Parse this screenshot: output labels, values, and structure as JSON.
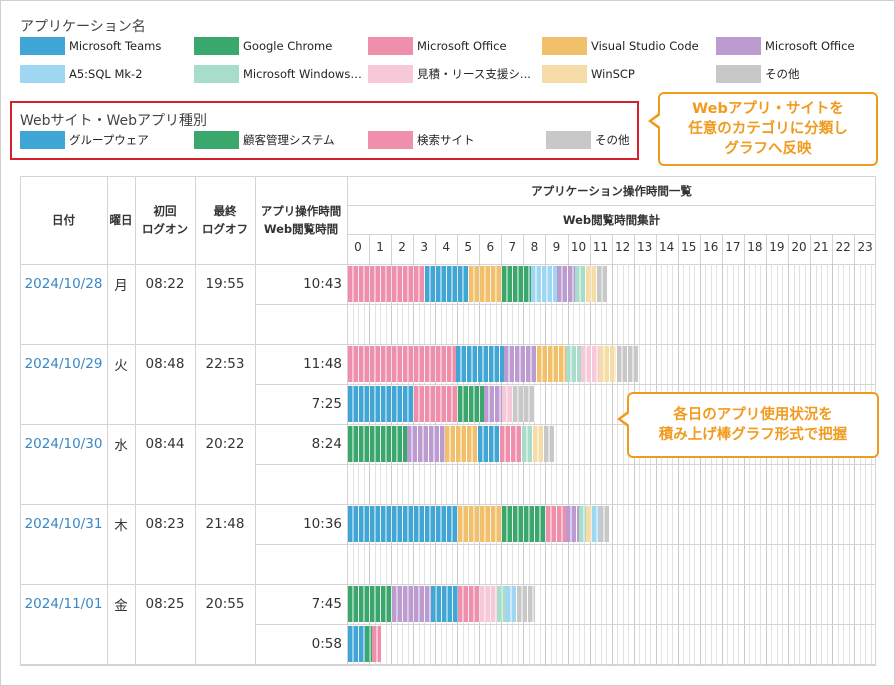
{
  "app_section": {
    "title": "アプリケーション名",
    "legend": [
      {
        "label": "Microsoft Teams",
        "color": "#3fa6d6"
      },
      {
        "label": "Google Chrome",
        "color": "#3aa86d"
      },
      {
        "label": "Microsoft Office",
        "color": "#ef8fab"
      },
      {
        "label": "Visual Studio Code",
        "color": "#f2c06b"
      },
      {
        "label": "Microsoft Office",
        "color": "#bc9bd0"
      },
      {
        "label": "A5:SQL Mk-2",
        "color": "#9fd7f3"
      },
      {
        "label": "Microsoft Windows ...",
        "color": "#a8ddcb"
      },
      {
        "label": "見積・リース支援シ...",
        "color": "#f7c8d8"
      },
      {
        "label": "WinSCP",
        "color": "#f6dca6"
      },
      {
        "label": "その他",
        "color": "#c8c8c8"
      }
    ]
  },
  "web_section": {
    "title": "Webサイト・Webアプリ種別",
    "legend": [
      {
        "label": "グループウェア",
        "color": "#3fa6d6"
      },
      {
        "label": "顧客管理システム",
        "color": "#3aa86d"
      },
      {
        "label": "検索サイト",
        "color": "#ef8fab"
      },
      {
        "label": "その他",
        "color": "#c8c8c8"
      }
    ]
  },
  "callouts": {
    "categorize": [
      "Webアプリ・サイトを",
      "任意のカテゴリに分類し",
      "グラフへ反映"
    ],
    "stacked": [
      "各日のアプリ使用状況を",
      "積み上げ棒グラフ形式で把握"
    ]
  },
  "table": {
    "headers": {
      "date": "日付",
      "weekday": "曜日",
      "first_logon": [
        "初回",
        "ログオン"
      ],
      "last_logoff": [
        "最終",
        "ログオフ"
      ],
      "time": [
        "アプリ操作時間",
        "Web閲覧時間"
      ],
      "app_time_list": "アプリケーション操作時間一覧",
      "web_summary": "Web閲覧時間集計"
    },
    "hours": [
      "0",
      "1",
      "2",
      "3",
      "4",
      "5",
      "6",
      "7",
      "8",
      "9",
      "10",
      "11",
      "12",
      "13",
      "14",
      "15",
      "16",
      "17",
      "18",
      "19",
      "20",
      "21",
      "22",
      "23"
    ],
    "rows": [
      {
        "date": "2024/10/28",
        "weekday": "月",
        "logon": "08:22",
        "logoff": "19:55",
        "app_time": "10:43",
        "web_time": "",
        "app_bar": [
          [
            3.5,
            "#ef8fab"
          ],
          [
            2.0,
            "#3fa6d6"
          ],
          [
            1.5,
            "#f2c06b"
          ],
          [
            1.3,
            "#3aa86d"
          ],
          [
            1.2,
            "#9fd7f3"
          ],
          [
            0.8,
            "#bc9bd0"
          ],
          [
            0.5,
            "#a8ddcb"
          ],
          [
            0.5,
            "#f6dca6"
          ],
          [
            0.45,
            "#c8c8c8"
          ]
        ],
        "web_bar": []
      },
      {
        "date": "2024/10/29",
        "weekday": "火",
        "logon": "08:48",
        "logoff": "22:53",
        "app_time": "11:48",
        "web_time": "7:25",
        "app_bar": [
          [
            4.9,
            "#ef8fab"
          ],
          [
            2.2,
            "#3fa6d6"
          ],
          [
            1.5,
            "#bc9bd0"
          ],
          [
            1.3,
            "#f2c06b"
          ],
          [
            0.7,
            "#a8ddcb"
          ],
          [
            0.8,
            "#f7c8d8"
          ],
          [
            0.8,
            "#f6dca6"
          ],
          [
            1.0,
            "#c8c8c8"
          ]
        ],
        "web_bar": [
          [
            3.0,
            "#3fa6d6"
          ],
          [
            2.0,
            "#ef8fab"
          ],
          [
            1.2,
            "#3aa86d"
          ],
          [
            0.8,
            "#bc9bd0"
          ],
          [
            0.5,
            "#f7c8d8"
          ],
          [
            1.0,
            "#c8c8c8"
          ]
        ]
      },
      {
        "date": "2024/10/30",
        "weekday": "水",
        "logon": "08:44",
        "logoff": "20:22",
        "app_time": "8:24",
        "web_time": "",
        "app_bar": [
          [
            2.7,
            "#3aa86d"
          ],
          [
            1.7,
            "#bc9bd0"
          ],
          [
            1.5,
            "#f2c06b"
          ],
          [
            1.0,
            "#3fa6d6"
          ],
          [
            1.0,
            "#ef8fab"
          ],
          [
            0.5,
            "#a8ddcb"
          ],
          [
            0.5,
            "#f6dca6"
          ],
          [
            0.5,
            "#c8c8c8"
          ]
        ],
        "web_bar": []
      },
      {
        "date": "2024/10/31",
        "weekday": "木",
        "logon": "08:23",
        "logoff": "21:48",
        "app_time": "10:36",
        "web_time": "",
        "app_bar": [
          [
            5.0,
            "#3fa6d6"
          ],
          [
            2.0,
            "#f2c06b"
          ],
          [
            2.0,
            "#3aa86d"
          ],
          [
            0.9,
            "#ef8fab"
          ],
          [
            0.6,
            "#bc9bd0"
          ],
          [
            0.3,
            "#a8ddcb"
          ],
          [
            0.3,
            "#f6dca6"
          ],
          [
            0.3,
            "#9fd7f3"
          ],
          [
            0.5,
            "#c8c8c8"
          ]
        ],
        "web_bar": []
      },
      {
        "date": "2024/11/01",
        "weekday": "金",
        "logon": "08:25",
        "logoff": "20:55",
        "app_time": "7:45",
        "web_time": "0:58",
        "app_bar": [
          [
            2.0,
            "#3aa86d"
          ],
          [
            1.8,
            "#bc9bd0"
          ],
          [
            1.2,
            "#3fa6d6"
          ],
          [
            1.0,
            "#ef8fab"
          ],
          [
            0.8,
            "#f7c8d8"
          ],
          [
            0.4,
            "#a8ddcb"
          ],
          [
            0.5,
            "#9fd7f3"
          ],
          [
            0.8,
            "#c8c8c8"
          ]
        ],
        "web_bar": [
          [
            0.8,
            "#3fa6d6"
          ],
          [
            0.3,
            "#3aa86d"
          ],
          [
            0.4,
            "#ef8fab"
          ]
        ]
      }
    ]
  }
}
